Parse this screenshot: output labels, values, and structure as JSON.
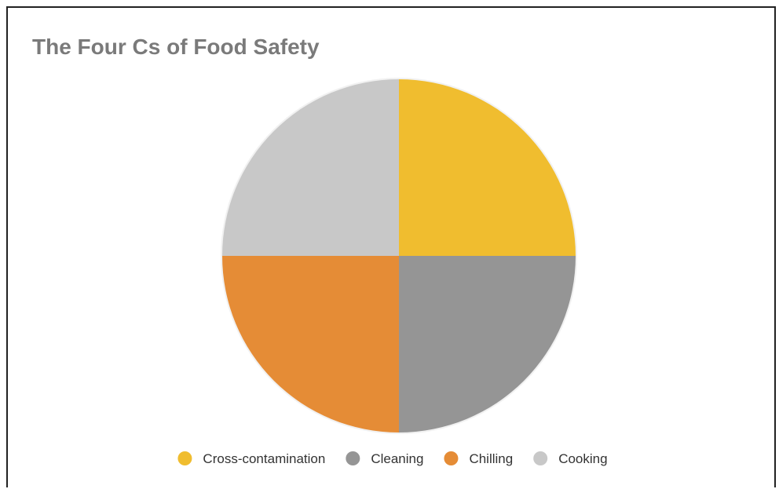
{
  "chart_data": {
    "type": "pie",
    "title": "The Four Cs of Food Safety",
    "slices": [
      {
        "label": "Cross-contamination",
        "value": 25,
        "color": "#f0bd2f"
      },
      {
        "label": "Cleaning",
        "value": 25,
        "color": "#959595"
      },
      {
        "label": "Chilling",
        "value": 25,
        "color": "#e58c36"
      },
      {
        "label": "Cooking",
        "value": 25,
        "color": "#c8c8c8"
      }
    ],
    "start_angle": "12 o'clock",
    "direction": "clockwise",
    "legend_position": "bottom"
  }
}
